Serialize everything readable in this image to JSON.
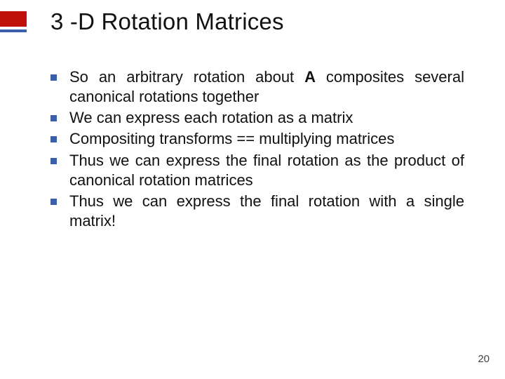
{
  "colors": {
    "accent_red": "#c0100a",
    "accent_blue": "#3b5fab",
    "title_color": "#111111",
    "body_color": "#111111",
    "bullet_color": "#3b5fab",
    "pagenum_color": "#444444",
    "background": "#ffffff"
  },
  "title": "3 -D Rotation Matrices",
  "bullets": [
    {
      "text": "So an arbitrary rotation about <b>A</b> composites several canonical rotations together",
      "justify": true
    },
    {
      "text": "We can express each rotation as a matrix",
      "justify": false
    },
    {
      "text": "Compositing transforms == multiplying matrices",
      "justify": false
    },
    {
      "text": "Thus we can express the final rotation as the product of canonical rotation matrices",
      "justify": true
    },
    {
      "text": "Thus we can express the final rotation with a single matrix!",
      "justify": true
    }
  ],
  "page_number": "20",
  "layout": {
    "slide_width": 720,
    "slide_height": 540,
    "title_fontsize": 33,
    "body_fontsize": 22,
    "bullet_marker_size": 9
  }
}
